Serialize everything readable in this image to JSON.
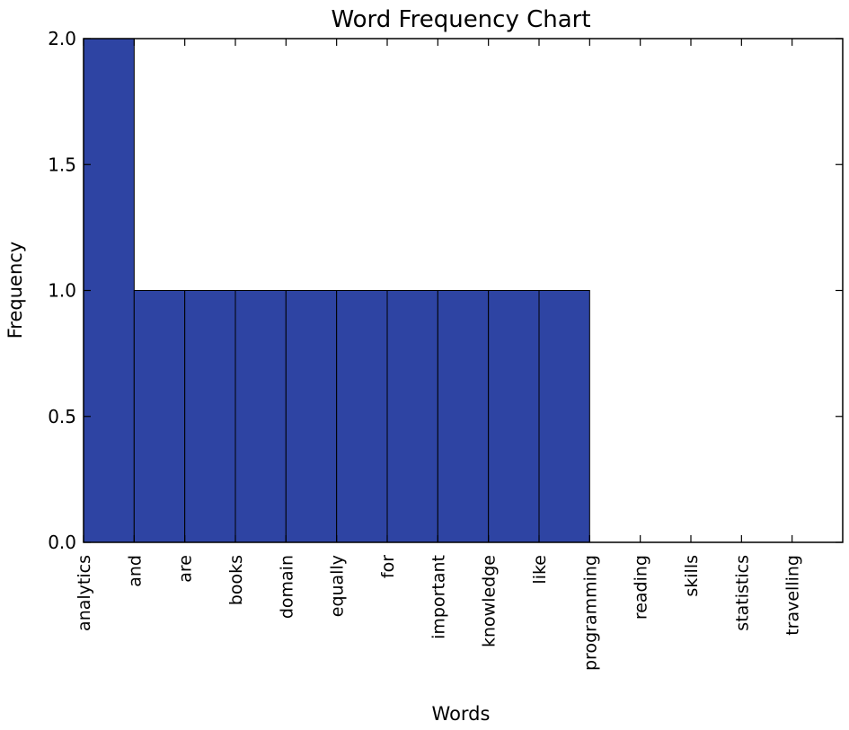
{
  "chart_data": {
    "type": "bar",
    "title": "Word Frequency Chart",
    "xlabel": "Words",
    "ylabel": "Frequency",
    "categories": [
      "analytics",
      "and",
      "are",
      "books",
      "domain",
      "equally",
      "for",
      "important",
      "knowledge",
      "like",
      "programming",
      "reading",
      "skills",
      "statistics",
      "travelling"
    ],
    "values": [
      2,
      1,
      1,
      1,
      1,
      1,
      1,
      1,
      1,
      1,
      0,
      0,
      0,
      0,
      0
    ],
    "ylim": [
      0,
      2.0
    ],
    "yticks": [
      "0.0",
      "0.5",
      "1.0",
      "1.5",
      "2.0"
    ],
    "grid": false,
    "colors": {
      "bar": "#2e44a3",
      "bar_edge": "#000000"
    }
  }
}
